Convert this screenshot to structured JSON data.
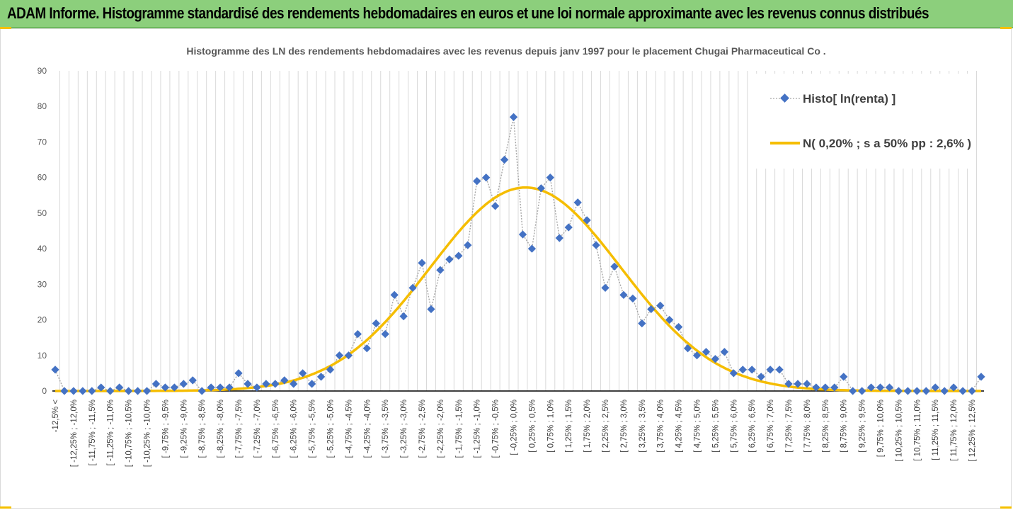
{
  "page_title": "ADAM Informe. Histogramme standardisé des rendements hebdomadaires en euros et une loi normale approximante avec les revenus connus distribués",
  "colors": {
    "banner": "#8ccf7c",
    "histo_series": "#4472c4",
    "normal_series": "#f5bd00",
    "grid": "#d9d9d9"
  },
  "chart_data": {
    "type": "line",
    "title": "Histogramme des LN des rendements hebdomadaires avec les revenus depuis janv 1997 pour le placement Chugai Pharmaceutical Co .",
    "xlabel": "",
    "ylabel": "",
    "ylim": [
      0,
      90
    ],
    "yticks": [
      0,
      10,
      20,
      30,
      40,
      50,
      60,
      70,
      80,
      90
    ],
    "grid": "vertical",
    "legend_position": "top-right",
    "categories": [
      "-12,5% <",
      "[ -12,25% ; -12,0%",
      "[ -11,75% ; -11,5%",
      "[ -11,25% ; -11,0%",
      "[ -10,75% ; -10,5%",
      "[ -10,25% ; -10,0%",
      "[ -9,75% ; -9,5%",
      "[ -9,25% ; -9,0%",
      "[ -8,75% ; -8,5%",
      "[ -8,25% ; -8,0%",
      "[ -7,75% ; -7,5%",
      "[ -7,25% ; -7,0%",
      "[ -6,75% ; -6,5%",
      "[ -6,25% ; -6,0%",
      "[ -5,75% ; -5,5%",
      "[ -5,25% ; -5,0%",
      "[ -4,75% ; -4,5%",
      "[ -4,25% ; -4,0%",
      "[ -3,75% ; -3,5%",
      "[ -3,25% ; -3,0%",
      "[ -2,75% ; -2,5%",
      "[ -2,25% ; -2,0%",
      "[ -1,75% ; -1,5%",
      "[ -1,25% ; -1,0%",
      "[ -0,75% ; -0,5%",
      "[ -0,25% ; 0,0%",
      "[ 0,25% ; 0,5%",
      "[ 0,75% ; 1,0%",
      "[ 1,25% ; 1,5%",
      "[ 1,75% ; 2,0%",
      "[ 2,25% ; 2,5%",
      "[ 2,75% ; 3,0%",
      "[ 3,25% ; 3,5%",
      "[ 3,75% ; 4,0%",
      "[ 4,25% ; 4,5%",
      "[ 4,75% ; 5,0%",
      "[ 5,25% ; 5,5%",
      "[ 5,75% ; 6,0%",
      "[ 6,25% ; 6,5%",
      "[ 6,75% ; 7,0%",
      "[ 7,25% ; 7,5%",
      "[ 7,75% ; 8,0%",
      "[ 8,25% ; 8,5%",
      "[ 8,75% ; 9,0%",
      "[ 9,25% ; 9,5%",
      "[ 9,75% ; 10,0%",
      "[ 10,25% ; 10,5%",
      "[ 10,75% ; 11,0%",
      "[ 11,25% ; 11,5%",
      "[ 11,75% ; 12,0%",
      "[ 12,25% ; 12,5%"
    ],
    "series": [
      {
        "name": "Histo[ ln(renta) ]",
        "type": "scatter-dotted",
        "color": "#4472c4",
        "values": [
          6,
          0,
          0,
          0,
          0,
          1,
          0,
          1,
          0,
          0,
          0,
          2,
          1,
          1,
          2,
          3,
          0,
          1,
          1,
          1,
          5,
          2,
          1,
          2,
          2,
          3,
          2,
          5,
          2,
          4,
          6,
          10,
          10,
          16,
          12,
          19,
          16,
          27,
          21,
          29,
          36,
          23,
          34,
          37,
          38,
          41,
          59,
          60,
          52,
          65,
          77,
          44,
          40,
          57,
          60,
          43,
          46,
          53,
          48,
          41,
          29,
          35,
          27,
          26,
          19,
          23,
          24,
          20,
          18,
          12,
          10,
          11,
          9,
          11,
          5,
          6,
          6,
          4,
          6,
          6,
          2,
          2,
          2,
          1,
          1,
          1,
          4,
          0,
          0,
          1,
          1,
          1,
          0,
          0,
          0,
          0,
          1,
          0,
          1,
          0,
          0,
          4
        ]
      },
      {
        "name": "N( 0,20% ; s a 50% pp : 2,6% )",
        "type": "line",
        "color": "#f5bd00",
        "mean_pct": 0.2,
        "sigma_pct": 2.6,
        "peak": 57.2
      }
    ]
  }
}
